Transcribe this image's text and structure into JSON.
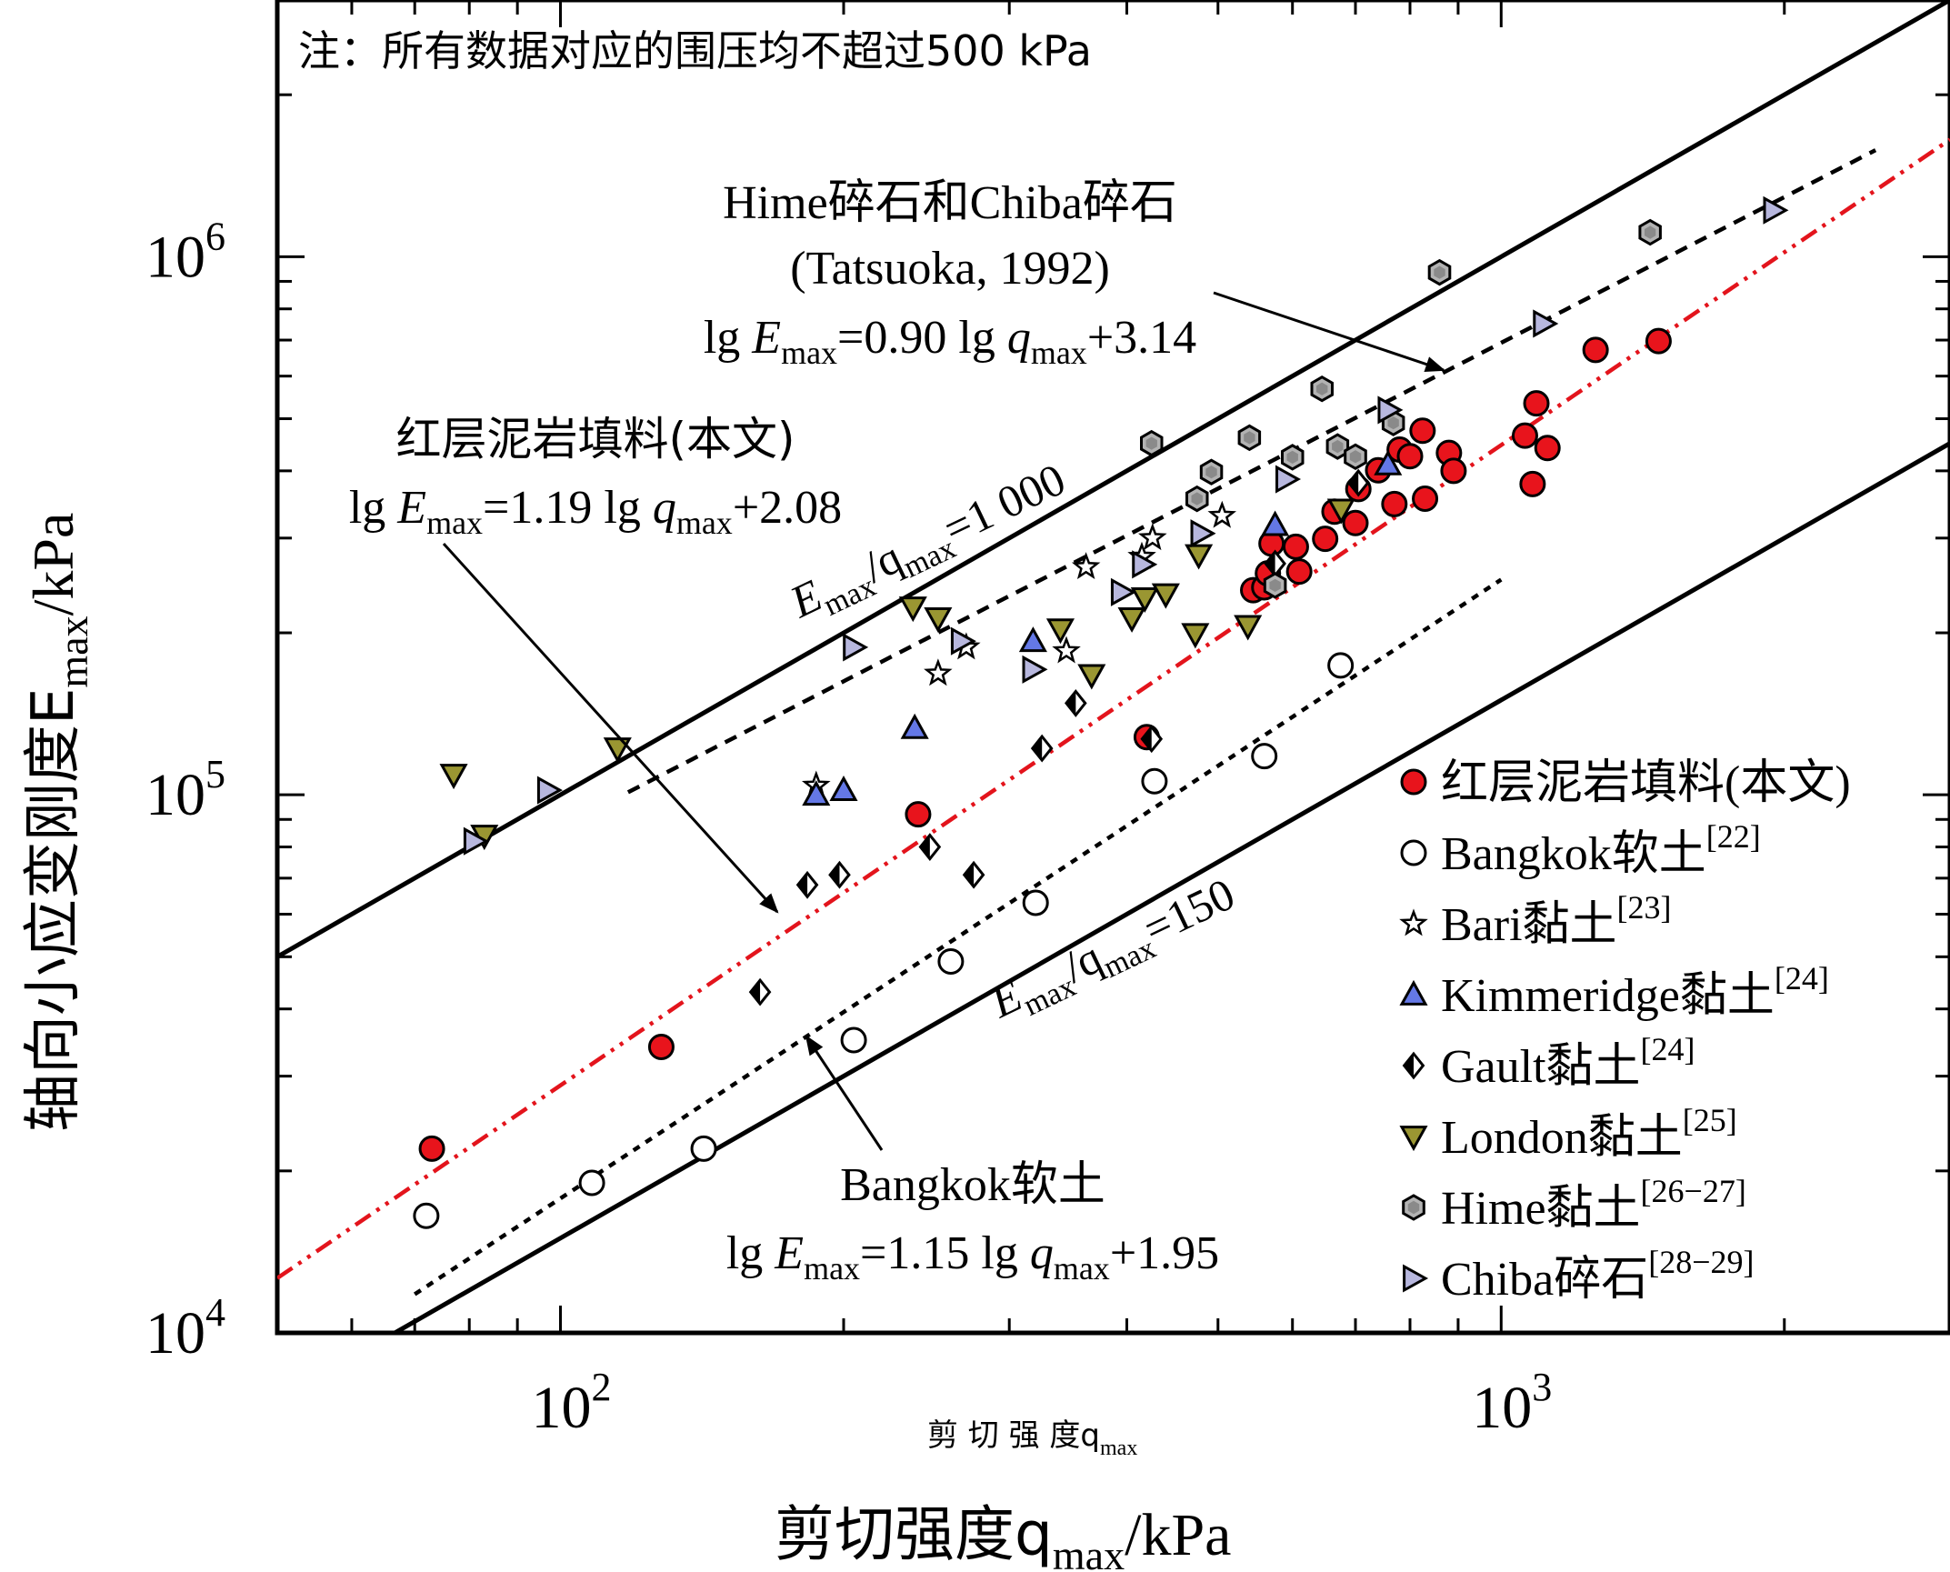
{
  "chart_data": {
    "type": "scatter",
    "xlabel": "剪切强度q",
    "xlabel_sub": "max",
    "xlabel_unit": "/kPa",
    "xlabel_small": "剪 切 强 度q",
    "xlabel_small_sub": "max",
    "ylabel": "轴向小应变刚度E",
    "ylabel_sub": "max",
    "ylabel_unit": "/kPa",
    "x_scale": "log",
    "y_scale": "log",
    "xlim": [
      50,
      3000
    ],
    "ylim": [
      10000,
      3000000
    ],
    "x_ticks": [
      {
        "base": "10",
        "exp": "2",
        "value": 100
      },
      {
        "base": "10",
        "exp": "3",
        "value": 1000
      }
    ],
    "y_ticks": [
      {
        "base": "10",
        "exp": "4",
        "value": 10000
      },
      {
        "base": "10",
        "exp": "5",
        "value": 100000
      },
      {
        "base": "10",
        "exp": "6",
        "value": 1000000
      }
    ],
    "note": "注：所有数据对应的围压均不超过500 kPa",
    "legend_position": "lower-right",
    "colors": {
      "red": "#e8141c",
      "blue": "#6478e6",
      "olive": "#9a9632",
      "gray": "#b3b3b3",
      "chiba": "#b7b7de",
      "redline": "#e3141c"
    },
    "reference_lines": [
      {
        "label": "E",
        "label_sub1": "max",
        "label_mid": "/q",
        "label_sub2": "max",
        "label_tail": "=1 000",
        "ratio": 1000
      },
      {
        "label": "E",
        "label_sub1": "max",
        "label_mid": "/q",
        "label_sub2": "max",
        "label_tail": "=150",
        "ratio": 150
      }
    ],
    "fit_lines": [
      {
        "id": "red",
        "slope": 1.19,
        "intercept": 2.08,
        "x_range": [
          50,
          3000
        ],
        "style": "dash-dot",
        "color": "#e3141c"
      },
      {
        "id": "hime",
        "slope": 0.9,
        "intercept": 3.14,
        "x_range": [
          118,
          2500
        ],
        "style": "dash",
        "color": "#000000"
      },
      {
        "id": "bangkok",
        "slope": 1.15,
        "intercept": 1.95,
        "x_range": [
          70,
          1000
        ],
        "style": "dot",
        "color": "#000000"
      }
    ],
    "annotations": [
      {
        "id": "hime",
        "lines": [
          "Hime碎石和Chiba碎石",
          "(Tatsuoka, 1992)"
        ],
        "eq": {
          "a": "lg ",
          "b": "E",
          "c": "max",
          "d": "=0.90 lg ",
          "e": "q",
          "f": "max",
          "g": "+3.14"
        }
      },
      {
        "id": "red",
        "lines": [
          "红层泥岩填料(本文)"
        ],
        "eq": {
          "a": "lg ",
          "b": "E",
          "c": "max",
          "d": "=1.19 lg ",
          "e": "q",
          "f": "max",
          "g": "+2.08"
        }
      },
      {
        "id": "bangkok",
        "lines": [
          "Bangkok软土"
        ],
        "eq": {
          "a": "lg ",
          "b": "E",
          "c": "max",
          "d": "=1.15 lg ",
          "e": "q",
          "f": "max",
          "g": "+1.95"
        }
      }
    ],
    "series": [
      {
        "name": "红层泥岩填料(本文)",
        "ref": "",
        "marker": "circle",
        "fill": "#e8141c",
        "points": [
          [
            73,
            22000
          ],
          [
            128,
            34000
          ],
          [
            240,
            92000
          ],
          [
            420,
            128000
          ],
          [
            545,
            240000
          ],
          [
            560,
            243000
          ],
          [
            565,
            258000
          ],
          [
            570,
            293000
          ],
          [
            605,
            289000
          ],
          [
            610,
            260000
          ],
          [
            650,
            299000
          ],
          [
            665,
            336000
          ],
          [
            700,
            320000
          ],
          [
            705,
            370000
          ],
          [
            740,
            401000
          ],
          [
            770,
            347000
          ],
          [
            780,
            438000
          ],
          [
            800,
            426000
          ],
          [
            825,
            475000
          ],
          [
            830,
            355000
          ],
          [
            880,
            432000
          ],
          [
            890,
            400000
          ],
          [
            1060,
            465000
          ],
          [
            1080,
            378000
          ],
          [
            1090,
            534000
          ],
          [
            1120,
            441000
          ],
          [
            1260,
            671000
          ],
          [
            1470,
            697000
          ]
        ]
      },
      {
        "name": "Bangkok软土",
        "ref": "[22]",
        "marker": "circle",
        "fill": "#ffffff",
        "points": [
          [
            72,
            16500
          ],
          [
            108,
            19000
          ],
          [
            142,
            22000
          ],
          [
            205,
            35000
          ],
          [
            260,
            49000
          ],
          [
            320,
            63000
          ],
          [
            428,
            106000
          ],
          [
            560,
            118000
          ],
          [
            675,
            174000
          ]
        ]
      },
      {
        "name": "Bari黏土",
        "ref": "[23]",
        "marker": "star",
        "fill": "#ffffff",
        "points": [
          [
            187,
            104000
          ],
          [
            252,
            168000
          ],
          [
            270,
            188000
          ],
          [
            345,
            185000
          ],
          [
            362,
            265000
          ],
          [
            415,
            277000
          ],
          [
            426,
            300000
          ],
          [
            505,
            330000
          ]
        ]
      },
      {
        "name": "Kimmeridge黏土",
        "ref": "[24]",
        "marker": "triangle-up",
        "fill": "#6478e6",
        "points": [
          [
            187,
            100000
          ],
          [
            200,
            102000
          ],
          [
            238,
            133000
          ],
          [
            318,
            193000
          ],
          [
            575,
            317000
          ],
          [
            758,
            411000
          ]
        ]
      },
      {
        "name": "Gault黏土",
        "ref": "[24]",
        "marker": "diamond",
        "fill": "#ffffff",
        "points": [
          [
            163,
            43000
          ],
          [
            183,
            68000
          ],
          [
            198,
            71000
          ],
          [
            247,
            80000
          ],
          [
            275,
            71000
          ],
          [
            325,
            122000
          ],
          [
            353,
            148000
          ],
          [
            425,
            127000
          ],
          [
            575,
            269000
          ],
          [
            705,
            380000
          ]
        ]
      },
      {
        "name": "London黏土",
        "ref": "[25]",
        "marker": "triangle-down",
        "fill": "#9a9632",
        "points": [
          [
            77,
            109000
          ],
          [
            83,
            84000
          ],
          [
            115,
            122000
          ],
          [
            237,
            223000
          ],
          [
            252,
            213000
          ],
          [
            340,
            203000
          ],
          [
            367,
            167000
          ],
          [
            405,
            213000
          ],
          [
            418,
            232000
          ],
          [
            440,
            236000
          ],
          [
            473,
            199000
          ],
          [
            477,
            279000
          ],
          [
            538,
            206000
          ],
          [
            676,
            339000
          ]
        ]
      },
      {
        "name": "Hime黏土",
        "ref": "[26−27]",
        "marker": "hexagon",
        "fill": "#b3b3b3",
        "points": [
          [
            425,
            450000
          ],
          [
            475,
            355000
          ],
          [
            492,
            398000
          ],
          [
            540,
            461000
          ],
          [
            575,
            245000
          ],
          [
            600,
            424000
          ],
          [
            645,
            568000
          ],
          [
            670,
            444000
          ],
          [
            700,
            425000
          ],
          [
            768,
            491000
          ],
          [
            860,
            935000
          ],
          [
            1440,
            1110000
          ]
        ]
      },
      {
        "name": "Chiba碎石",
        "ref": "[28−29]",
        "marker": "triangle-right",
        "fill": "#b7b7de",
        "points": [
          [
            81,
            82000
          ],
          [
            97,
            102000
          ],
          [
            205,
            188000
          ],
          [
            267,
            193000
          ],
          [
            318,
            171000
          ],
          [
            395,
            238000
          ],
          [
            416,
            268000
          ],
          [
            480,
            306000
          ],
          [
            591,
            386000
          ],
          [
            759,
            519000
          ],
          [
            1110,
            751000
          ],
          [
            1950,
            1220000
          ]
        ]
      }
    ]
  }
}
